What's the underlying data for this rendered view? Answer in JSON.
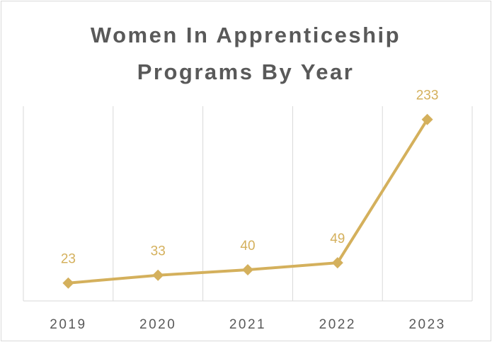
{
  "chart_data": {
    "type": "line",
    "title": "Women In Apprenticeship Programs By Year",
    "categories": [
      "2019",
      "2020",
      "2021",
      "2022",
      "2023"
    ],
    "values": [
      23,
      33,
      40,
      49,
      233
    ],
    "color": "#d4b05c",
    "ylim": [
      0,
      250
    ],
    "grid": true
  }
}
